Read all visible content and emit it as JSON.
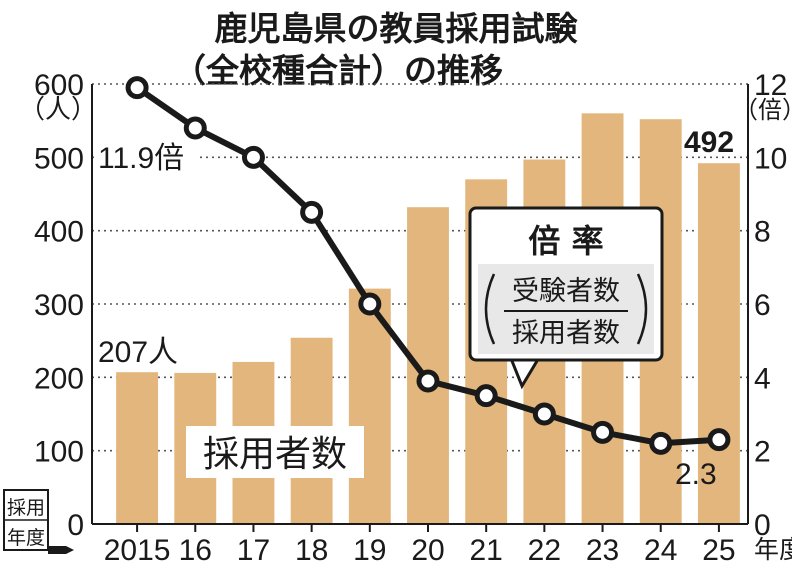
{
  "chart_data": {
    "type": "bar+line",
    "title_line1": "鹿児島県の教員採用試験",
    "title_line2": "（全校種合計）の推移",
    "categories": [
      "2015",
      "16",
      "17",
      "18",
      "19",
      "20",
      "21",
      "22",
      "23",
      "24",
      "25"
    ],
    "x_unit": "年度",
    "x_axis_badge": [
      "採用",
      "年度"
    ],
    "series": [
      {
        "name": "採用者数",
        "type": "bar",
        "axis": "left",
        "color": "#e3b67d",
        "values": [
          207,
          206,
          221,
          254,
          321,
          432,
          470,
          497,
          560,
          552,
          492
        ]
      },
      {
        "name": "倍率",
        "type": "line",
        "axis": "right",
        "color": "#1a1a1a",
        "values": [
          11.9,
          10.8,
          10.0,
          8.5,
          6.0,
          3.9,
          3.5,
          3.0,
          2.5,
          2.2,
          2.3
        ]
      }
    ],
    "left_axis": {
      "unit": "（人）",
      "ylim": [
        0,
        600
      ],
      "ticks": [
        0,
        100,
        200,
        300,
        400,
        500,
        600
      ]
    },
    "right_axis": {
      "unit": "（倍）",
      "ylim": [
        0,
        12
      ],
      "ticks": [
        0,
        2,
        4,
        6,
        8,
        10,
        12
      ]
    },
    "annotations": {
      "first_bar": "207人",
      "last_bar": "492",
      "first_point": "11.9倍",
      "last_point": "2.3",
      "bar_series_label": "採用者数",
      "legend_title": "倍 率",
      "legend_numerator": "受験者数",
      "legend_denominator": "採用者数"
    },
    "grid": "horizontal-dotted"
  }
}
